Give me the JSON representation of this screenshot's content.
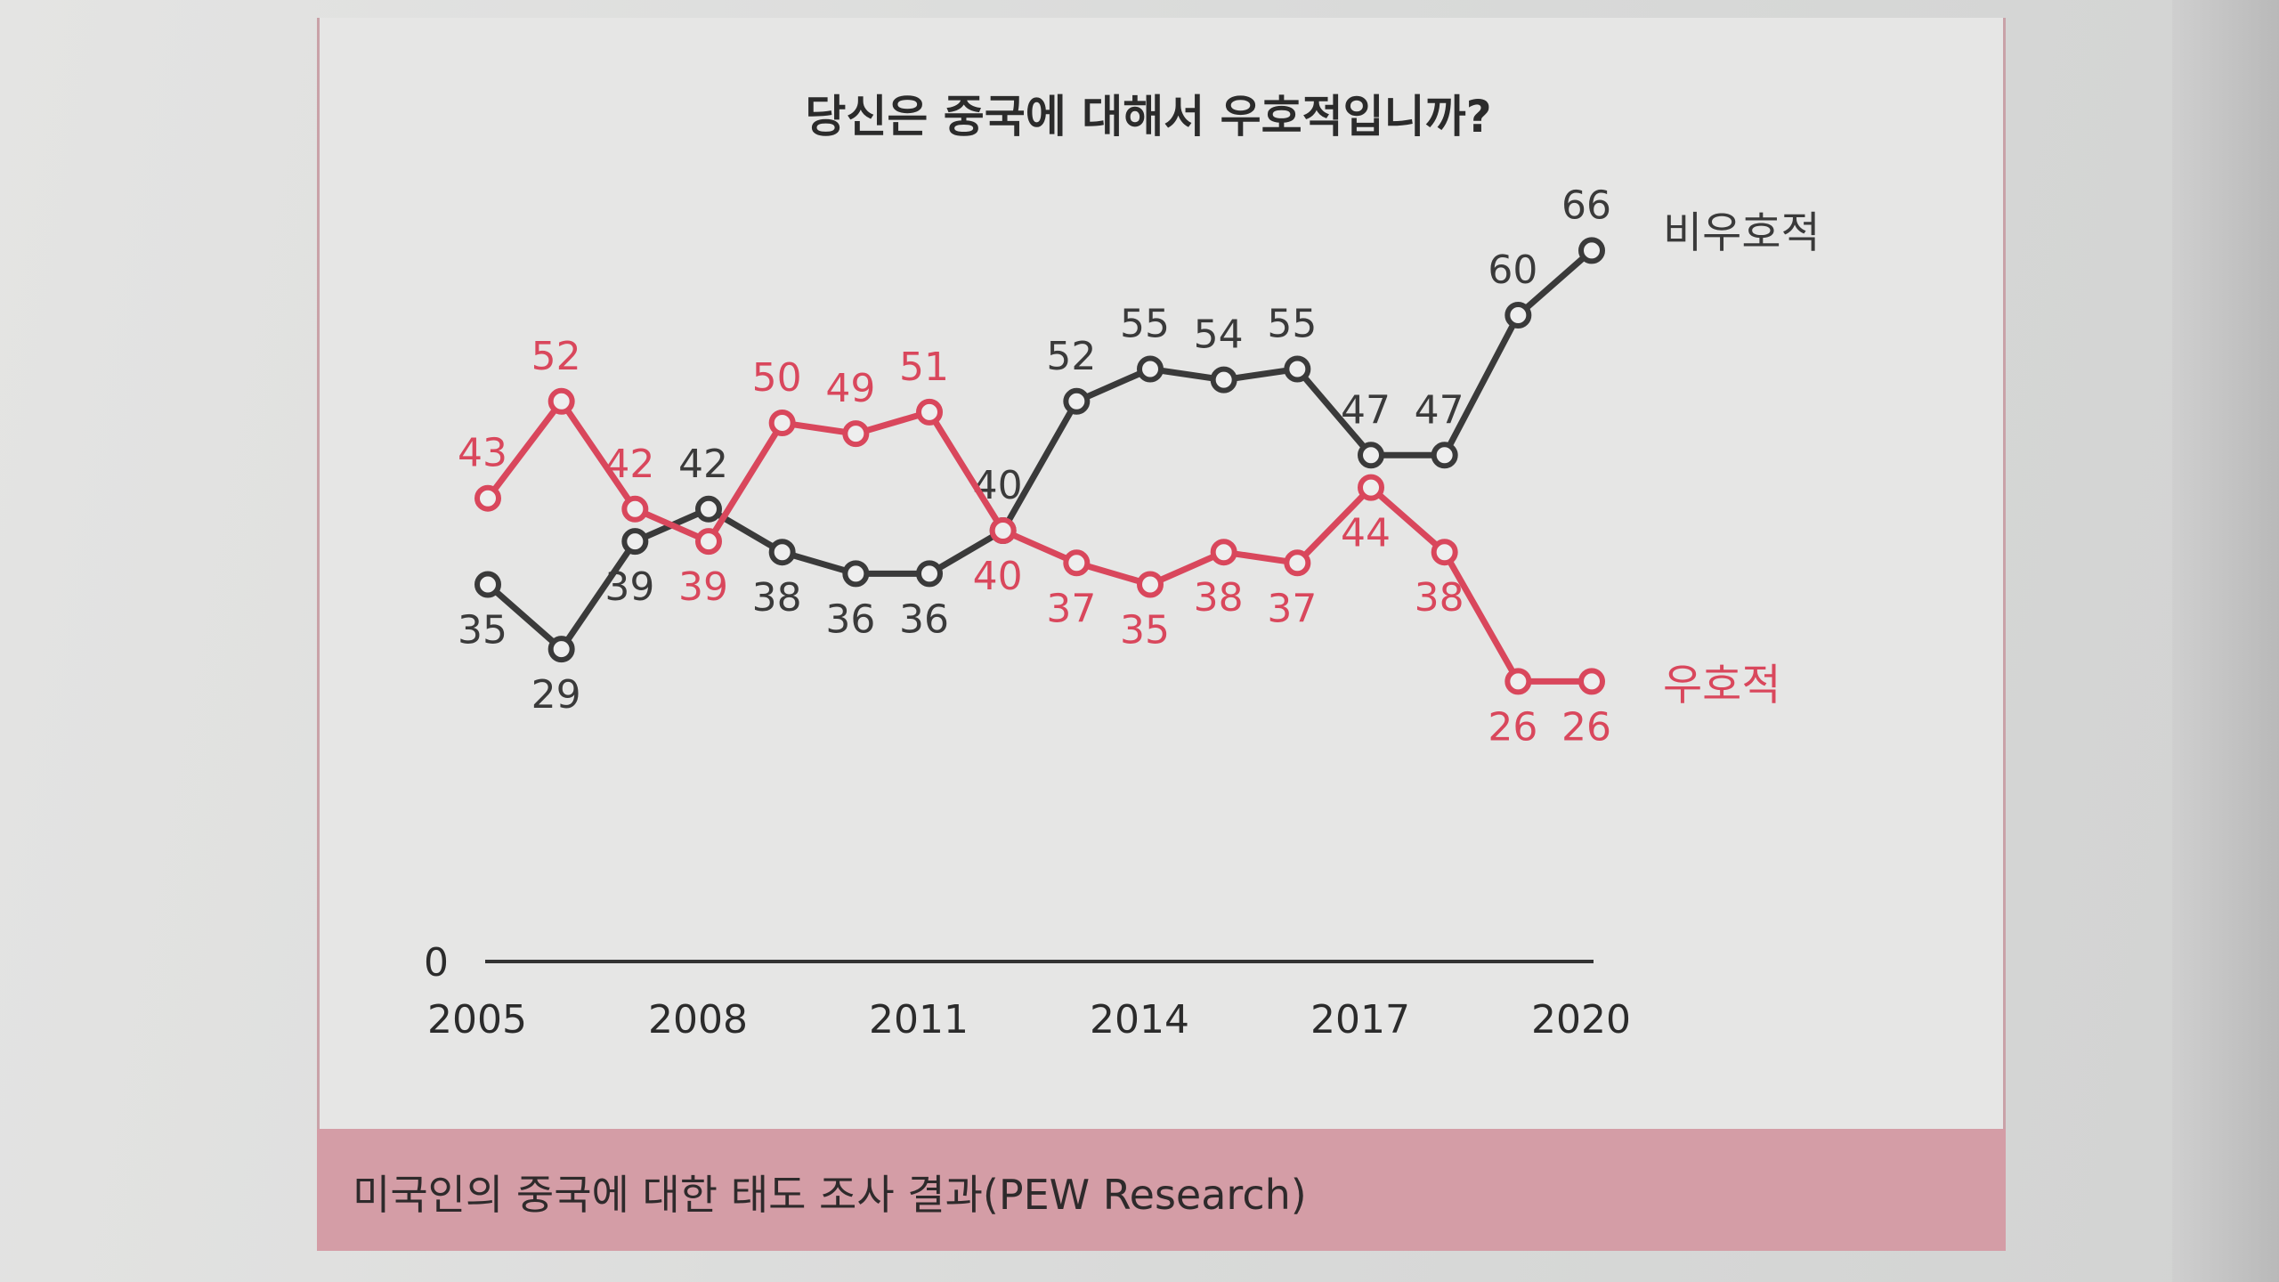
{
  "caption": "미국인의 중국에 대한 태도 조사 결과(PEW Research)",
  "colors": {
    "unfavorable": "#3a3a3a",
    "favorable": "#d9475c",
    "caption_bg": "#d49da6"
  },
  "chart_data": {
    "type": "line",
    "title": "당신은 중국에 대해서 우호적입니까?",
    "x": [
      2005,
      2006,
      2007,
      2008,
      2009,
      2010,
      2011,
      2012,
      2013,
      2014,
      2015,
      2016,
      2017,
      2018,
      2019,
      2020
    ],
    "x_tick_labels": [
      "2005",
      "2008",
      "2011",
      "2014",
      "2017",
      "2020"
    ],
    "y_tick_labels": [
      "0"
    ],
    "xlim": [
      2005,
      2020
    ],
    "grid": false,
    "series": [
      {
        "name": "비우호적",
        "color": "#3a3a3a",
        "values": [
          35,
          29,
          39,
          42,
          38,
          36,
          36,
          40,
          52,
          55,
          54,
          55,
          47,
          47,
          60,
          66
        ]
      },
      {
        "name": "우호적",
        "color": "#d9475c",
        "values": [
          43,
          52,
          42,
          39,
          50,
          49,
          51,
          40,
          37,
          35,
          38,
          37,
          44,
          38,
          26,
          26
        ]
      }
    ]
  }
}
